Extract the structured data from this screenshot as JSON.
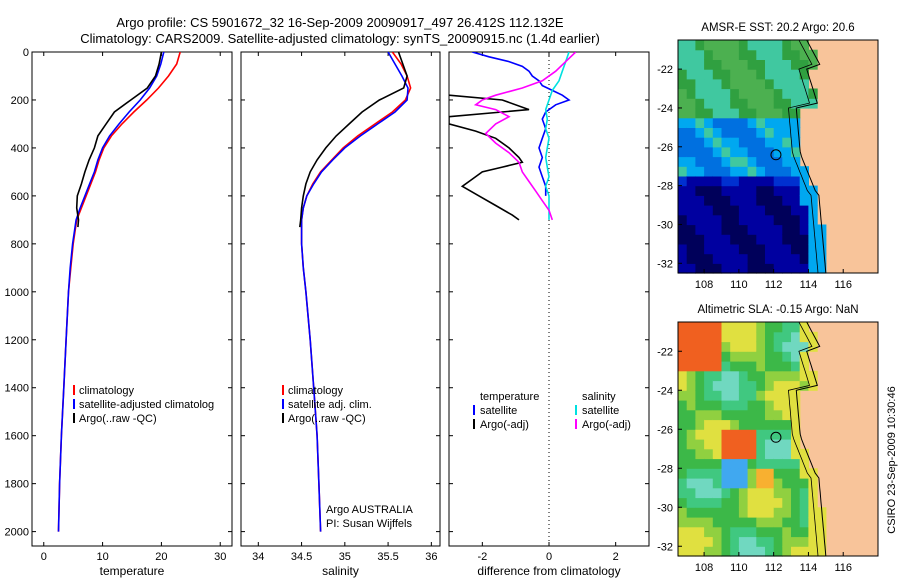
{
  "figure": {
    "title_line1": "Argo profile: CS 5901672_32 16-Sep-2009 20090917_497 26.412S 112.132E",
    "title_line2": "Climatology: CARS2009. Satellite-adjusted climatology: synTS_20090915.nc (1.4d earlier)",
    "side_stamp": "CSIRO 23-Sep-2009 10:30:46"
  },
  "colors": {
    "climatology": "#ff0000",
    "satellite": "#0000ff",
    "argo": "#000000",
    "salinity_satellite": "#00e0e0",
    "salinity_argo": "#ff00ff",
    "land": "#f8c49a",
    "frame": "#000000"
  },
  "chart_data": [
    {
      "type": "line",
      "xlabel": "temperature",
      "ylabel": "",
      "xlim": [
        -2,
        32
      ],
      "ylim": [
        2060,
        0
      ],
      "xticks": [
        0,
        10,
        20,
        30
      ],
      "yticks": [
        0,
        200,
        400,
        600,
        800,
        1000,
        1200,
        1400,
        1600,
        1800,
        2000
      ],
      "legend": [
        "climatology",
        "satellite-adjusted climatolog",
        "Argo(..raw -QC)"
      ],
      "series": [
        {
          "name": "climatology",
          "color_key": "climatology",
          "depth": [
            0,
            50,
            100,
            150,
            200,
            250,
            300,
            350,
            400,
            450,
            500,
            550,
            600,
            650,
            700,
            800,
            900,
            1000,
            1200,
            1400,
            1600,
            1800,
            2000
          ],
          "values": [
            23.2,
            22.6,
            21.2,
            19.5,
            17.5,
            15.3,
            13.3,
            11.5,
            10.2,
            9.4,
            8.8,
            8.0,
            7.2,
            6.4,
            5.6,
            5.0,
            4.6,
            4.2,
            3.8,
            3.4,
            3.0,
            2.7,
            2.5
          ]
        },
        {
          "name": "satellite-adjusted climatology",
          "color_key": "satellite",
          "depth": [
            0,
            50,
            100,
            150,
            200,
            250,
            300,
            350,
            400,
            450,
            500,
            550,
            600,
            650,
            700,
            800,
            900,
            1000,
            1200,
            1400,
            1600,
            1800,
            2000
          ],
          "values": [
            20.4,
            19.9,
            19.2,
            18.0,
            16.4,
            14.5,
            12.8,
            11.2,
            10.0,
            9.2,
            8.6,
            7.8,
            7.0,
            6.2,
            5.5,
            4.9,
            4.5,
            4.2,
            3.8,
            3.4,
            3.0,
            2.7,
            2.5
          ]
        },
        {
          "name": "Argo(..raw -QC)",
          "color_key": "argo",
          "depth": [
            0,
            50,
            100,
            150,
            200,
            250,
            300,
            350,
            400,
            450,
            500,
            550,
            600,
            650,
            700,
            730
          ],
          "values": [
            20.0,
            19.6,
            19.0,
            17.6,
            14.8,
            12.0,
            10.6,
            9.2,
            8.6,
            7.7,
            7.0,
            6.4,
            5.7,
            5.6,
            5.9,
            5.8
          ]
        }
      ]
    },
    {
      "type": "line",
      "xlabel": "salinity",
      "ylabel": "",
      "xlim": [
        33.8,
        36.1
      ],
      "ylim": [
        2060,
        0
      ],
      "xticks": [
        34,
        34.5,
        35,
        35.5,
        36
      ],
      "yticks": [
        0,
        200,
        400,
        600,
        800,
        1000,
        1200,
        1400,
        1600,
        1800,
        2000
      ],
      "legend": [
        "climatology",
        "satellite adj. clim.",
        "Argo(..raw -QC)"
      ],
      "annotations": [
        "Argo AUSTRALIA",
        "PI: Susan Wijffels"
      ],
      "series": [
        {
          "name": "climatology",
          "color_key": "climatology",
          "depth": [
            0,
            50,
            100,
            150,
            200,
            250,
            300,
            350,
            400,
            450,
            500,
            550,
            600,
            650,
            700,
            800,
            900,
            1000,
            1200,
            1400,
            1600,
            1800,
            2000
          ],
          "values": [
            35.55,
            35.65,
            35.72,
            35.76,
            35.7,
            35.55,
            35.35,
            35.15,
            34.98,
            34.85,
            34.72,
            34.63,
            34.56,
            34.52,
            34.5,
            34.5,
            34.52,
            34.55,
            34.6,
            34.64,
            34.68,
            34.7,
            34.72
          ]
        },
        {
          "name": "satellite adj. clim.",
          "color_key": "satellite",
          "depth": [
            0,
            50,
            100,
            150,
            200,
            250,
            300,
            350,
            400,
            450,
            500,
            550,
            600,
            650,
            700,
            800,
            900,
            1000,
            1200,
            1400,
            1600,
            1800,
            2000
          ],
          "values": [
            35.5,
            35.58,
            35.66,
            35.73,
            35.72,
            35.58,
            35.38,
            35.18,
            35.0,
            34.86,
            34.73,
            34.64,
            34.56,
            34.52,
            34.5,
            34.5,
            34.52,
            34.55,
            34.6,
            34.64,
            34.68,
            34.7,
            34.72
          ]
        },
        {
          "name": "Argo(..raw -QC)",
          "color_key": "argo",
          "depth": [
            0,
            50,
            100,
            150,
            200,
            250,
            300,
            350,
            400,
            450,
            500,
            550,
            600,
            650,
            700,
            730
          ],
          "values": [
            35.62,
            35.67,
            35.72,
            35.68,
            35.4,
            35.2,
            35.05,
            34.9,
            34.78,
            34.68,
            34.6,
            34.55,
            34.52,
            34.5,
            34.49,
            34.48
          ]
        }
      ]
    },
    {
      "type": "line",
      "xlabel": "difference from climatology",
      "ylabel": "",
      "xlim": [
        -3,
        3
      ],
      "ylim": [
        2060,
        0
      ],
      "xticks": [
        -2,
        0,
        2
      ],
      "yticks": [
        0,
        200,
        400,
        600,
        800,
        1000,
        1200,
        1400,
        1600,
        1800,
        2000
      ],
      "zero_line": 0,
      "legend_left": {
        "heading": "temperature",
        "items": [
          "satellite",
          "Argo(-adj)"
        ]
      },
      "legend_right": {
        "heading": "salinity",
        "items": [
          "satellite",
          "Argo(-adj)"
        ]
      },
      "series": [
        {
          "name": "temperature satellite",
          "color_key": "satellite",
          "depth": [
            0,
            20,
            40,
            60,
            80,
            100,
            120,
            140,
            160,
            180,
            200,
            220,
            250,
            280,
            320,
            360,
            400,
            440,
            480,
            520,
            560,
            600
          ],
          "values": [
            -2.3,
            -1.8,
            -1.2,
            -0.8,
            -0.6,
            -0.5,
            -0.3,
            -0.2,
            0.1,
            0.4,
            0.6,
            0.2,
            -0.1,
            -0.2,
            -0.1,
            -0.2,
            -0.3,
            -0.2,
            -0.3,
            -0.2,
            -0.1,
            -0.1
          ]
        },
        {
          "name": "temperature Argo(-adj)",
          "color_key": "argo",
          "depth": [
            180,
            200,
            240,
            270,
            300,
            330,
            360,
            400,
            440,
            460,
            480,
            500,
            530,
            560,
            600,
            640,
            680,
            700
          ],
          "values": [
            -3.0,
            -1.4,
            -0.6,
            -3.0,
            -3.0,
            -2.2,
            -1.6,
            -1.2,
            -0.9,
            -0.8,
            -1.4,
            -2.0,
            -2.3,
            -2.6,
            -2.1,
            -1.6,
            -1.1,
            -0.9
          ]
        },
        {
          "name": "salinity satellite",
          "color_key": "salinity_satellite",
          "depth": [
            0,
            40,
            80,
            120,
            160,
            200,
            240,
            280,
            320,
            360,
            400,
            440,
            480,
            520,
            560,
            600,
            640,
            680,
            700
          ],
          "values": [
            0.6,
            0.5,
            0.4,
            0.3,
            0.1,
            0.0,
            -0.1,
            -0.05,
            -0.1,
            0.0,
            -0.05,
            -0.1,
            -0.05,
            0.0,
            -0.1,
            0.0,
            0.0,
            0.0,
            0.0
          ]
        },
        {
          "name": "salinity Argo(-adj)",
          "color_key": "salinity_argo",
          "depth": [
            0,
            40,
            80,
            120,
            150,
            180,
            200,
            220,
            240,
            270,
            300,
            340,
            380,
            420,
            460,
            500,
            540,
            580,
            620,
            660,
            700
          ],
          "values": [
            0.8,
            0.5,
            0.2,
            -0.2,
            -0.8,
            -1.6,
            -2.0,
            -2.2,
            -1.6,
            -1.2,
            -1.6,
            -1.9,
            -1.6,
            -1.2,
            -0.9,
            -0.8,
            -0.6,
            -0.4,
            -0.2,
            0.0,
            0.1
          ]
        }
      ]
    },
    {
      "type": "heatmap",
      "title": "AMSR-E SST: 20.2 Argo: 20.6",
      "xlim": [
        106.5,
        118
      ],
      "ylim": [
        -32.5,
        -20.5
      ],
      "xticks": [
        108,
        110,
        112,
        114,
        116
      ],
      "yticks": [
        -22,
        -24,
        -26,
        -28,
        -30,
        -32
      ],
      "marker": {
        "lon": 112.132,
        "lat": -26.412
      },
      "palette": [
        "#00005a",
        "#0000a0",
        "#0030d0",
        "#0070e0",
        "#00a8f0",
        "#40c8a0",
        "#30a040",
        "#4cb050"
      ]
    },
    {
      "type": "heatmap",
      "title": "Altimetric SLA: -0.15 Argo: NaN",
      "xlim": [
        106.5,
        118
      ],
      "ylim": [
        -32.5,
        -20.5
      ],
      "xticks": [
        108,
        110,
        112,
        114,
        116
      ],
      "yticks": [
        -22,
        -24,
        -26,
        -28,
        -30,
        -32
      ],
      "marker": {
        "lon": 112.132,
        "lat": -26.412
      },
      "palette": [
        "#40a8f0",
        "#70d8c0",
        "#40c880",
        "#3cb848",
        "#90d040",
        "#e0e040",
        "#f8b030",
        "#f06020"
      ]
    }
  ]
}
